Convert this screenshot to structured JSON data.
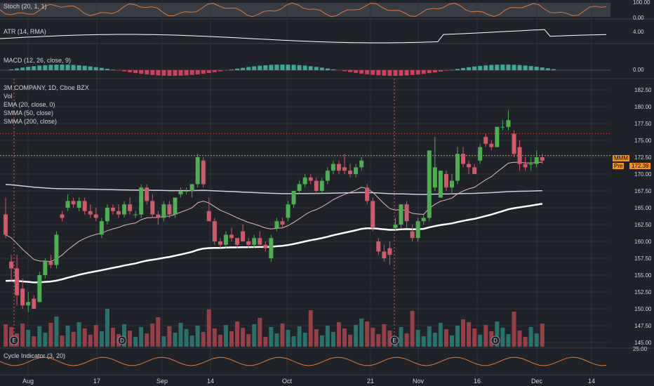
{
  "colors": {
    "bg": "#1f2229",
    "grid": "#2e323c",
    "up": "#26a69a",
    "down": "#ef5350",
    "upBody": "#4caf50",
    "downBody": "#d05a6a",
    "ema": "#e6b8b8",
    "smma50": "#ffffff",
    "smma200": "#cfcfe0",
    "stoch": "#e27a3f",
    "cycle": "#e27a3f",
    "text": "#d1d4dc",
    "accent": "#f7931a"
  },
  "panes": {
    "stoch": {
      "label": "Stoch (20, 1, 1)",
      "ticks": [
        "100.00",
        "0.00"
      ]
    },
    "atr": {
      "label": "ATR (14, RMA)",
      "ticks": [
        "4.00"
      ]
    },
    "macd": {
      "label": "MACD (12, 26, close, 9)",
      "ticks": [
        "0.00"
      ]
    },
    "main": {
      "labels": [
        "3M COMPANY, 1D, Cboe BZX",
        "Vol",
        "EMA (20, close, 0)",
        "SMMA (50, close)",
        "SMMA (200, close)"
      ]
    },
    "cycle": {
      "label": "Cycle Indicator (3, 20)",
      "ticks": [
        "25.00"
      ]
    }
  },
  "price_badges": {
    "ticker": "MMM",
    "pre_label": "Pre",
    "pre_value": "172.39"
  },
  "events": [
    "E",
    "D",
    "E",
    "D"
  ],
  "chart_data": {
    "type": "candlestick",
    "x_ticks": [
      "Aug",
      "17",
      "Sep",
      "14",
      "Oct",
      "21",
      "Nov",
      "16",
      "Dec",
      "14"
    ],
    "y_ticks": [
      182.5,
      180,
      177.5,
      175,
      172.5,
      170,
      167.5,
      165,
      162.5,
      160,
      157.5,
      155,
      152.5,
      150,
      147.5,
      145
    ],
    "ylim": [
      145,
      182.5
    ],
    "candles": [
      [
        164.0,
        166.5,
        160.5,
        161.0
      ],
      [
        157.0,
        158.0,
        154.0,
        156.0
      ],
      [
        156.0,
        158.0,
        150.5,
        152.0
      ],
      [
        153.0,
        154.5,
        150.0,
        150.5
      ],
      [
        150.5,
        152.5,
        149.5,
        151.0
      ],
      [
        151.5,
        152.0,
        150.0,
        150.0
      ],
      [
        151.0,
        155.5,
        151.0,
        155.0
      ],
      [
        155.0,
        157.5,
        154.5,
        157.0
      ],
      [
        157.0,
        158.0,
        156.0,
        156.5
      ],
      [
        156.5,
        161.5,
        156.0,
        161.0
      ],
      [
        164.0,
        164.5,
        163.0,
        163.5
      ],
      [
        165.0,
        167.0,
        164.5,
        166.0
      ],
      [
        166.0,
        166.5,
        165.0,
        165.5
      ],
      [
        165.0,
        166.5,
        164.5,
        166.0
      ],
      [
        166.0,
        166.5,
        164.0,
        164.5
      ],
      [
        164.5,
        165.5,
        163.5,
        164.0
      ],
      [
        164.0,
        165.0,
        163.0,
        163.5
      ],
      [
        161.0,
        163.5,
        160.5,
        163.0
      ],
      [
        163.0,
        165.5,
        162.5,
        165.0
      ],
      [
        165.0,
        165.5,
        164.0,
        164.5
      ],
      [
        164.5,
        165.5,
        163.5,
        164.0
      ],
      [
        164.0,
        166.0,
        163.5,
        165.5
      ],
      [
        165.5,
        166.5,
        164.0,
        164.5
      ],
      [
        164.0,
        164.5,
        163.5,
        164.0
      ],
      [
        164.0,
        168.5,
        163.5,
        168.0
      ],
      [
        168.0,
        168.5,
        165.5,
        166.0
      ],
      [
        166.0,
        167.0,
        163.5,
        164.0
      ],
      [
        164.0,
        164.5,
        162.5,
        163.5
      ],
      [
        163.5,
        166.0,
        163.0,
        165.5
      ],
      [
        165.5,
        166.0,
        163.5,
        164.0
      ],
      [
        164.0,
        166.5,
        163.5,
        166.5
      ],
      [
        167.0,
        168.0,
        166.5,
        167.5
      ],
      [
        167.5,
        168.0,
        167.0,
        167.5
      ],
      [
        167.5,
        168.5,
        166.5,
        168.5
      ],
      [
        168.5,
        173.0,
        168.0,
        172.5
      ],
      [
        172.0,
        172.5,
        168.0,
        168.5
      ],
      [
        164.5,
        166.5,
        163.0,
        163.0
      ],
      [
        163.0,
        163.5,
        159.5,
        160.0
      ],
      [
        160.0,
        160.5,
        159.0,
        159.5
      ],
      [
        159.5,
        161.5,
        159.0,
        161.0
      ],
      [
        161.0,
        162.0,
        160.0,
        160.5
      ],
      [
        160.5,
        160.5,
        159.0,
        159.5
      ],
      [
        161.5,
        162.5,
        160.0,
        160.0
      ],
      [
        160.0,
        160.5,
        159.0,
        159.5
      ],
      [
        159.5,
        161.0,
        159.0,
        160.5
      ],
      [
        160.5,
        161.5,
        159.5,
        159.5
      ],
      [
        159.5,
        160.0,
        158.5,
        159.0
      ],
      [
        157.5,
        161.0,
        157.0,
        160.5
      ],
      [
        162.0,
        163.5,
        161.5,
        163.0
      ],
      [
        163.0,
        163.5,
        162.0,
        162.5
      ],
      [
        163.5,
        166.0,
        163.0,
        165.5
      ],
      [
        165.5,
        167.5,
        165.0,
        167.5
      ],
      [
        167.5,
        169.0,
        167.0,
        168.5
      ],
      [
        168.5,
        170.0,
        168.0,
        169.5
      ],
      [
        169.5,
        170.0,
        168.5,
        169.0
      ],
      [
        169.0,
        169.5,
        167.0,
        167.5
      ],
      [
        167.5,
        169.5,
        167.0,
        169.0
      ],
      [
        169.0,
        171.0,
        168.5,
        170.5
      ],
      [
        170.5,
        172.0,
        170.0,
        171.5
      ],
      [
        171.5,
        172.0,
        170.0,
        170.5
      ],
      [
        171.0,
        173.0,
        170.0,
        170.5
      ],
      [
        170.5,
        171.5,
        169.5,
        170.0
      ],
      [
        170.0,
        171.5,
        169.5,
        171.0
      ],
      [
        171.0,
        172.5,
        170.5,
        172.0
      ],
      [
        168.0,
        168.5,
        165.5,
        166.0
      ],
      [
        166.0,
        166.5,
        161.5,
        162.0
      ],
      [
        160.0,
        160.5,
        158.0,
        158.5
      ],
      [
        158.5,
        159.5,
        157.0,
        157.5
      ],
      [
        159.0,
        160.0,
        156.5,
        158.0
      ],
      [
        162.0,
        163.5,
        161.5,
        162.5
      ],
      [
        162.5,
        165.5,
        162.0,
        165.5
      ],
      [
        165.5,
        166.0,
        162.0,
        163.0
      ],
      [
        161.5,
        162.5,
        160.0,
        160.5
      ],
      [
        160.5,
        163.5,
        160.0,
        163.0
      ],
      [
        163.0,
        164.0,
        162.5,
        163.5
      ],
      [
        163.5,
        173.5,
        163.0,
        173.5
      ],
      [
        168.0,
        175.5,
        167.5,
        171.0
      ],
      [
        166.5,
        170.5,
        166.5,
        170.5
      ],
      [
        170.0,
        170.5,
        167.5,
        168.0
      ],
      [
        168.0,
        170.0,
        167.0,
        169.0
      ],
      [
        169.0,
        174.0,
        168.5,
        173.0
      ],
      [
        173.0,
        174.0,
        171.0,
        171.5
      ],
      [
        171.5,
        172.0,
        170.0,
        171.0
      ],
      [
        171.0,
        171.5,
        170.0,
        170.0
      ],
      [
        172.0,
        174.5,
        171.5,
        174.0
      ],
      [
        175.5,
        176.0,
        174.0,
        174.5
      ],
      [
        174.5,
        175.0,
        173.5,
        174.0
      ],
      [
        174.0,
        177.0,
        174.0,
        177.0
      ],
      [
        177.0,
        178.0,
        176.5,
        177.0
      ],
      [
        177.0,
        179.5,
        176.5,
        178.0
      ],
      [
        176.0,
        176.5,
        172.5,
        173.0
      ],
      [
        174.0,
        175.0,
        170.5,
        171.5
      ],
      [
        171.5,
        172.5,
        170.5,
        171.0
      ],
      [
        171.5,
        172.5,
        170.5,
        171.5
      ],
      [
        171.5,
        173.5,
        171.0,
        172.5
      ],
      [
        172.5,
        173.0,
        171.5,
        172.0
      ]
    ]
  }
}
